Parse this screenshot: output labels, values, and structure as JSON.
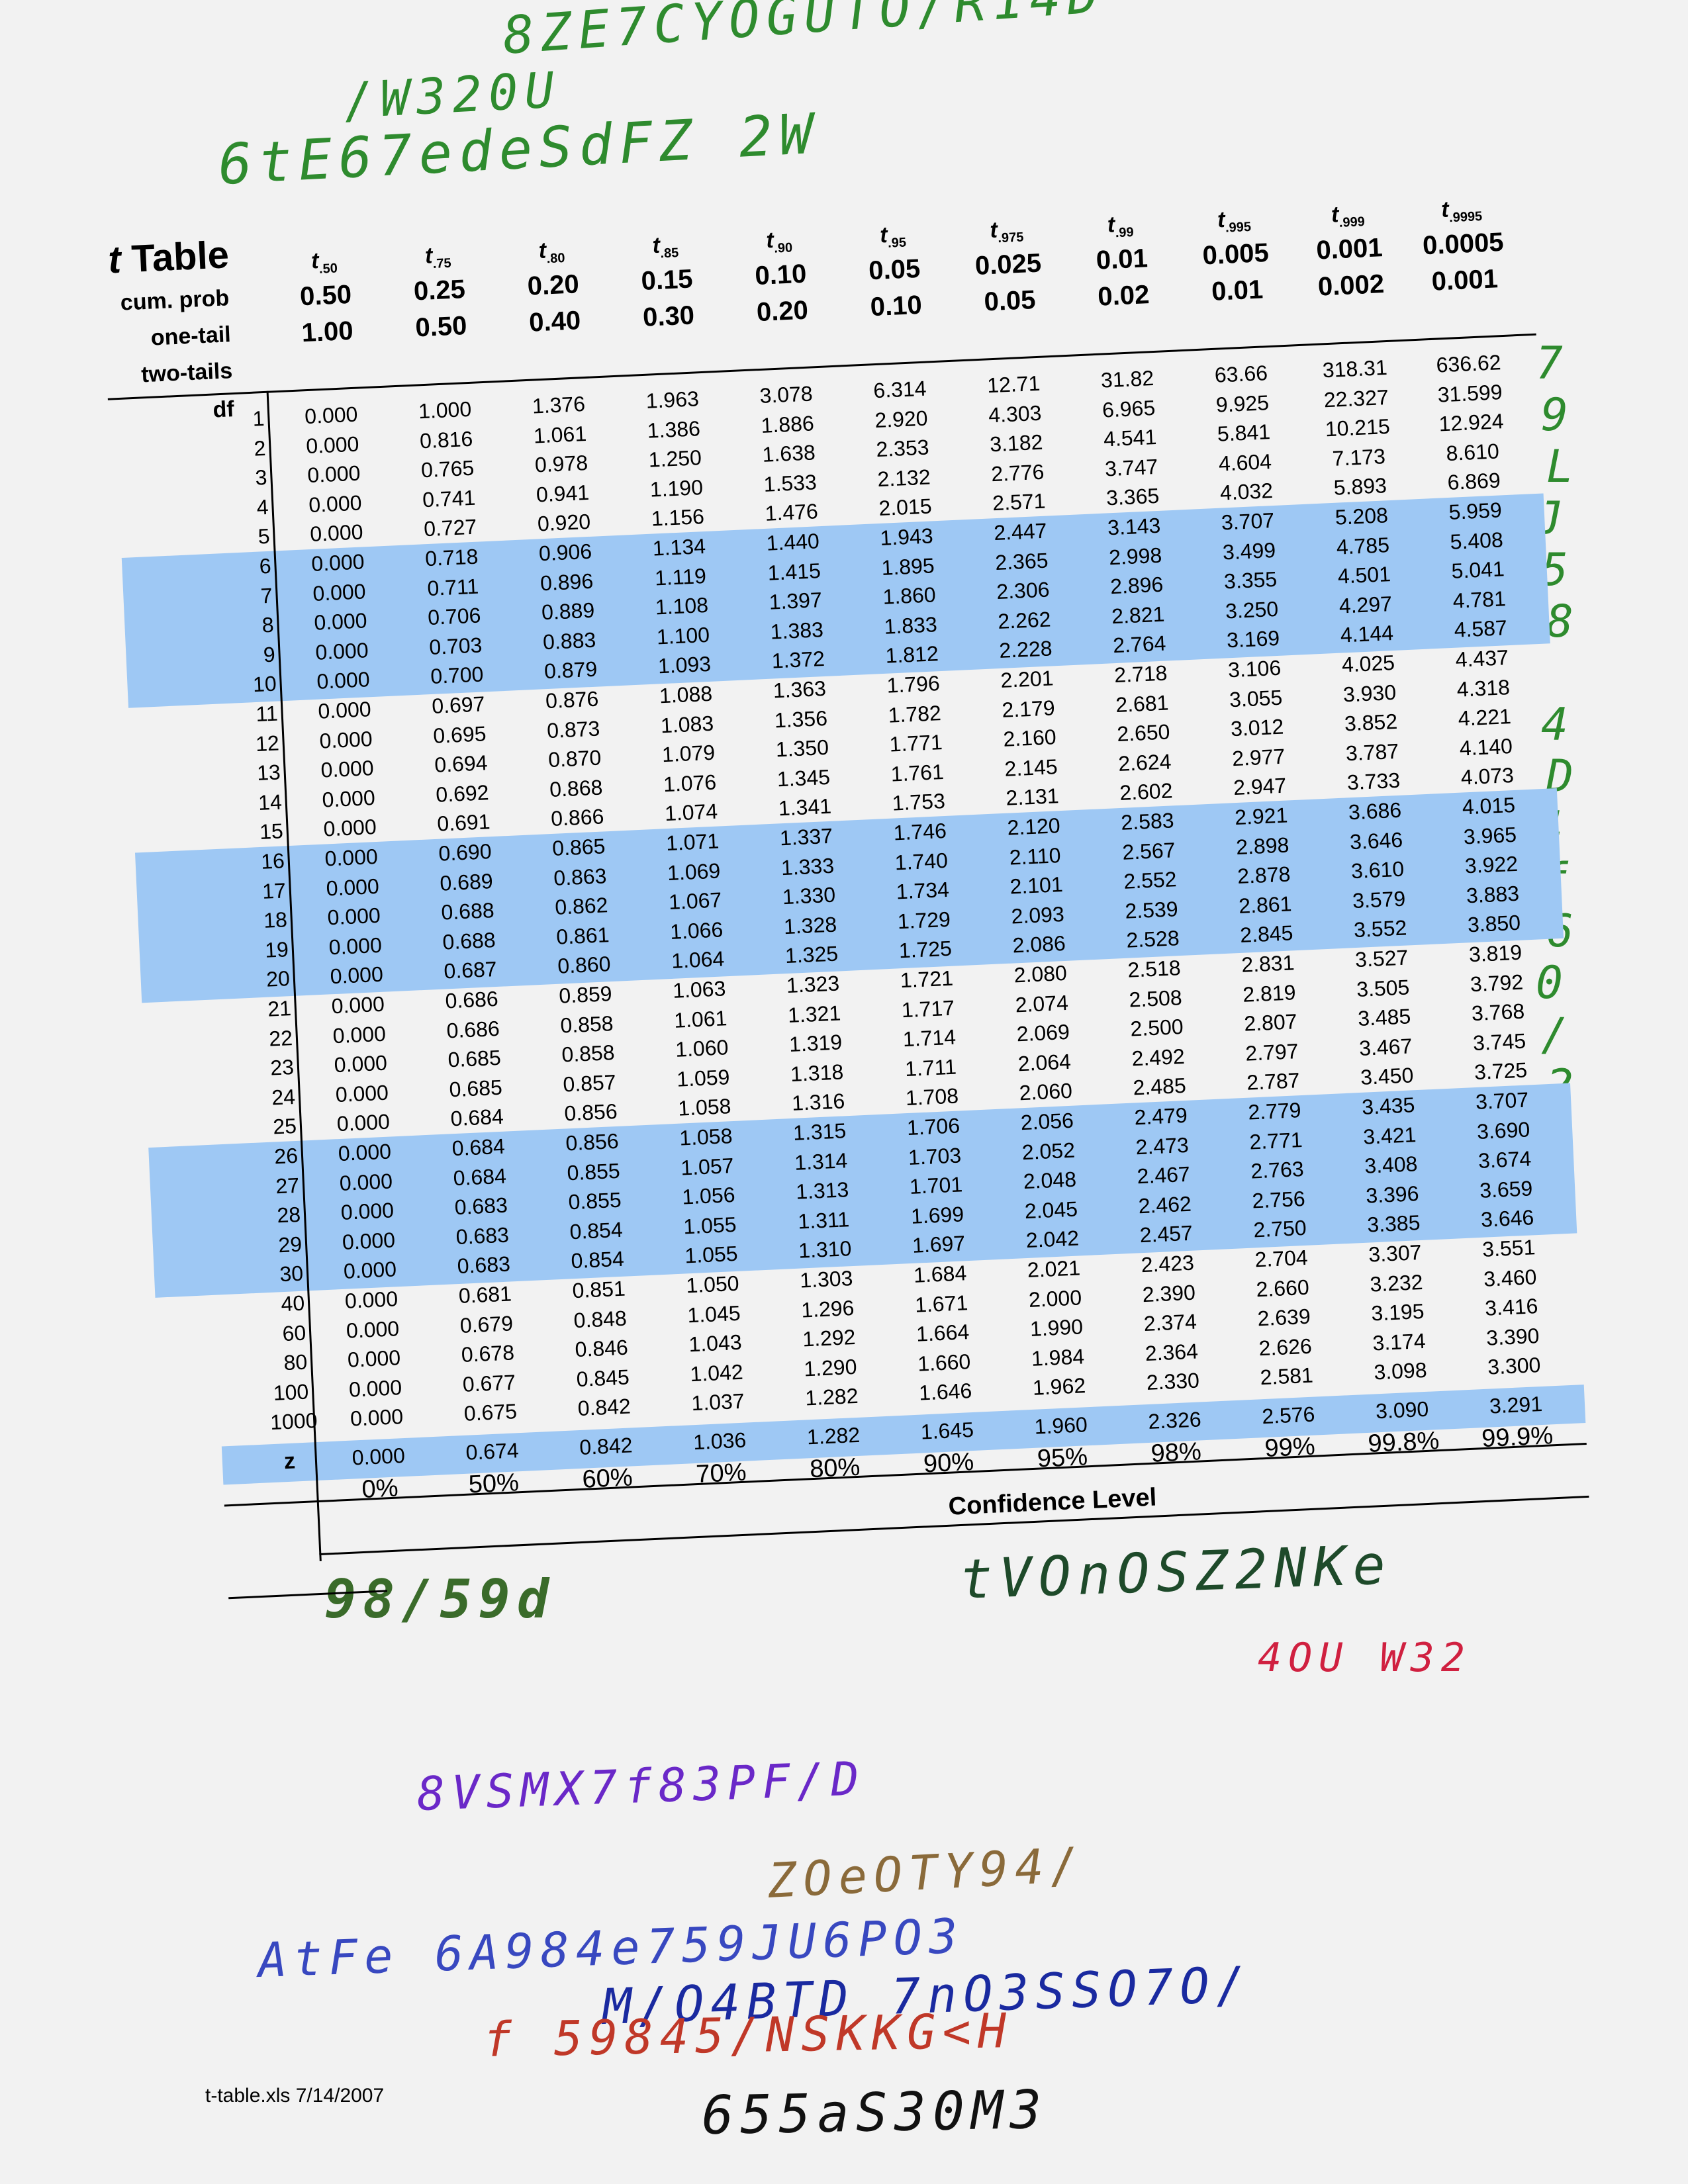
{
  "handwriting": [
    {
      "text": "8ZE7CYOGUTO/R14D",
      "color": "#2e8b2e"
    },
    {
      "text": "/W320U",
      "color": "#2e8b2e"
    },
    {
      "text": "6tE67edeSdFZ 2W",
      "color": "#2e8b2e"
    },
    {
      "text": "7",
      "color": "#2e8b2e"
    },
    {
      "text": "98/59d",
      "color": "#3a6b2a"
    },
    {
      "text": "tVOnOSZ2NKe",
      "color": "#1e4a2a"
    },
    {
      "text": "4OU W32",
      "color": "#d02040"
    },
    {
      "text": "8VSMX7f83PF/D",
      "color": "#6a28c8"
    },
    {
      "text": "ZOeOTY94/",
      "color": "#8a6a3a"
    },
    {
      "text": "AtFe 6A984e759JU6PO3",
      "color": "#3848c0"
    },
    {
      "text": "M/O4BTD 7nO3SSO7O/",
      "color": "#1a2aa0"
    },
    {
      "text": "f 59845/NSKKG<H",
      "color": "#c03828"
    },
    {
      "text": "655aS30M3",
      "color": "#111111"
    }
  ],
  "side_handwriting": [
    "7",
    "9",
    "L",
    "J",
    "5",
    "8",
    "",
    "4",
    "D",
    "4",
    "f",
    "6",
    "0",
    "/",
    "2",
    "5"
  ],
  "table": {
    "title_italic": "t",
    "title_rest": " Table",
    "row_labels": {
      "cum_prob": "cum. prob",
      "one_tail": "one-tail",
      "two_tails": "two-tails",
      "df": "df",
      "z": "z"
    },
    "columns": [
      {
        "t_sub": ".50",
        "cum": "0.50",
        "one": "0.50",
        "two": "1.00"
      },
      {
        "t_sub": ".75",
        "cum": "0.75",
        "one": "0.25",
        "two": "0.50"
      },
      {
        "t_sub": ".80",
        "cum": "0.80",
        "one": "0.20",
        "two": "0.40"
      },
      {
        "t_sub": ".85",
        "cum": "0.85",
        "one": "0.15",
        "two": "0.30"
      },
      {
        "t_sub": ".90",
        "cum": "0.90",
        "one": "0.10",
        "two": "0.20"
      },
      {
        "t_sub": ".95",
        "cum": "0.95",
        "one": "0.05",
        "two": "0.10"
      },
      {
        "t_sub": ".975",
        "cum": "0.975",
        "one": "0.025",
        "two": "0.05"
      },
      {
        "t_sub": ".99",
        "cum": "0.99",
        "one": "0.01",
        "two": "0.02"
      },
      {
        "t_sub": ".995",
        "cum": "0.995",
        "one": "0.005",
        "two": "0.01"
      },
      {
        "t_sub": ".999",
        "cum": "0.999",
        "one": "0.001",
        "two": "0.002"
      },
      {
        "t_sub": ".9995",
        "cum": "0.9995",
        "one": "0.0005",
        "two": "0.001"
      }
    ],
    "rows": [
      {
        "df": "1",
        "v": [
          "0.000",
          "1.000",
          "1.376",
          "1.963",
          "3.078",
          "6.314",
          "12.71",
          "31.82",
          "63.66",
          "318.31",
          "636.62"
        ]
      },
      {
        "df": "2",
        "v": [
          "0.000",
          "0.816",
          "1.061",
          "1.386",
          "1.886",
          "2.920",
          "4.303",
          "6.965",
          "9.925",
          "22.327",
          "31.599"
        ]
      },
      {
        "df": "3",
        "v": [
          "0.000",
          "0.765",
          "0.978",
          "1.250",
          "1.638",
          "2.353",
          "3.182",
          "4.541",
          "5.841",
          "10.215",
          "12.924"
        ]
      },
      {
        "df": "4",
        "v": [
          "0.000",
          "0.741",
          "0.941",
          "1.190",
          "1.533",
          "2.132",
          "2.776",
          "3.747",
          "4.604",
          "7.173",
          "8.610"
        ]
      },
      {
        "df": "5",
        "v": [
          "0.000",
          "0.727",
          "0.920",
          "1.156",
          "1.476",
          "2.015",
          "2.571",
          "3.365",
          "4.032",
          "5.893",
          "6.869"
        ]
      },
      {
        "df": "6",
        "v": [
          "0.000",
          "0.718",
          "0.906",
          "1.134",
          "1.440",
          "1.943",
          "2.447",
          "3.143",
          "3.707",
          "5.208",
          "5.959"
        ]
      },
      {
        "df": "7",
        "v": [
          "0.000",
          "0.711",
          "0.896",
          "1.119",
          "1.415",
          "1.895",
          "2.365",
          "2.998",
          "3.499",
          "4.785",
          "5.408"
        ]
      },
      {
        "df": "8",
        "v": [
          "0.000",
          "0.706",
          "0.889",
          "1.108",
          "1.397",
          "1.860",
          "2.306",
          "2.896",
          "3.355",
          "4.501",
          "5.041"
        ]
      },
      {
        "df": "9",
        "v": [
          "0.000",
          "0.703",
          "0.883",
          "1.100",
          "1.383",
          "1.833",
          "2.262",
          "2.821",
          "3.250",
          "4.297",
          "4.781"
        ]
      },
      {
        "df": "10",
        "v": [
          "0.000",
          "0.700",
          "0.879",
          "1.093",
          "1.372",
          "1.812",
          "2.228",
          "2.764",
          "3.169",
          "4.144",
          "4.587"
        ]
      },
      {
        "df": "11",
        "v": [
          "0.000",
          "0.697",
          "0.876",
          "1.088",
          "1.363",
          "1.796",
          "2.201",
          "2.718",
          "3.106",
          "4.025",
          "4.437"
        ]
      },
      {
        "df": "12",
        "v": [
          "0.000",
          "0.695",
          "0.873",
          "1.083",
          "1.356",
          "1.782",
          "2.179",
          "2.681",
          "3.055",
          "3.930",
          "4.318"
        ]
      },
      {
        "df": "13",
        "v": [
          "0.000",
          "0.694",
          "0.870",
          "1.079",
          "1.350",
          "1.771",
          "2.160",
          "2.650",
          "3.012",
          "3.852",
          "4.221"
        ]
      },
      {
        "df": "14",
        "v": [
          "0.000",
          "0.692",
          "0.868",
          "1.076",
          "1.345",
          "1.761",
          "2.145",
          "2.624",
          "2.977",
          "3.787",
          "4.140"
        ]
      },
      {
        "df": "15",
        "v": [
          "0.000",
          "0.691",
          "0.866",
          "1.074",
          "1.341",
          "1.753",
          "2.131",
          "2.602",
          "2.947",
          "3.733",
          "4.073"
        ]
      },
      {
        "df": "16",
        "v": [
          "0.000",
          "0.690",
          "0.865",
          "1.071",
          "1.337",
          "1.746",
          "2.120",
          "2.583",
          "2.921",
          "3.686",
          "4.015"
        ]
      },
      {
        "df": "17",
        "v": [
          "0.000",
          "0.689",
          "0.863",
          "1.069",
          "1.333",
          "1.740",
          "2.110",
          "2.567",
          "2.898",
          "3.646",
          "3.965"
        ]
      },
      {
        "df": "18",
        "v": [
          "0.000",
          "0.688",
          "0.862",
          "1.067",
          "1.330",
          "1.734",
          "2.101",
          "2.552",
          "2.878",
          "3.610",
          "3.922"
        ]
      },
      {
        "df": "19",
        "v": [
          "0.000",
          "0.688",
          "0.861",
          "1.066",
          "1.328",
          "1.729",
          "2.093",
          "2.539",
          "2.861",
          "3.579",
          "3.883"
        ]
      },
      {
        "df": "20",
        "v": [
          "0.000",
          "0.687",
          "0.860",
          "1.064",
          "1.325",
          "1.725",
          "2.086",
          "2.528",
          "2.845",
          "3.552",
          "3.850"
        ]
      },
      {
        "df": "21",
        "v": [
          "0.000",
          "0.686",
          "0.859",
          "1.063",
          "1.323",
          "1.721",
          "2.080",
          "2.518",
          "2.831",
          "3.527",
          "3.819"
        ]
      },
      {
        "df": "22",
        "v": [
          "0.000",
          "0.686",
          "0.858",
          "1.061",
          "1.321",
          "1.717",
          "2.074",
          "2.508",
          "2.819",
          "3.505",
          "3.792"
        ]
      },
      {
        "df": "23",
        "v": [
          "0.000",
          "0.685",
          "0.858",
          "1.060",
          "1.319",
          "1.714",
          "2.069",
          "2.500",
          "2.807",
          "3.485",
          "3.768"
        ]
      },
      {
        "df": "24",
        "v": [
          "0.000",
          "0.685",
          "0.857",
          "1.059",
          "1.318",
          "1.711",
          "2.064",
          "2.492",
          "2.797",
          "3.467",
          "3.745"
        ]
      },
      {
        "df": "25",
        "v": [
          "0.000",
          "0.684",
          "0.856",
          "1.058",
          "1.316",
          "1.708",
          "2.060",
          "2.485",
          "2.787",
          "3.450",
          "3.725"
        ]
      },
      {
        "df": "26",
        "v": [
          "0.000",
          "0.684",
          "0.856",
          "1.058",
          "1.315",
          "1.706",
          "2.056",
          "2.479",
          "2.779",
          "3.435",
          "3.707"
        ]
      },
      {
        "df": "27",
        "v": [
          "0.000",
          "0.684",
          "0.855",
          "1.057",
          "1.314",
          "1.703",
          "2.052",
          "2.473",
          "2.771",
          "3.421",
          "3.690"
        ]
      },
      {
        "df": "28",
        "v": [
          "0.000",
          "0.683",
          "0.855",
          "1.056",
          "1.313",
          "1.701",
          "2.048",
          "2.467",
          "2.763",
          "3.408",
          "3.674"
        ]
      },
      {
        "df": "29",
        "v": [
          "0.000",
          "0.683",
          "0.854",
          "1.055",
          "1.311",
          "1.699",
          "2.045",
          "2.462",
          "2.756",
          "3.396",
          "3.659"
        ]
      },
      {
        "df": "30",
        "v": [
          "0.000",
          "0.683",
          "0.854",
          "1.055",
          "1.310",
          "1.697",
          "2.042",
          "2.457",
          "2.750",
          "3.385",
          "3.646"
        ]
      },
      {
        "df": "40",
        "v": [
          "0.000",
          "0.681",
          "0.851",
          "1.050",
          "1.303",
          "1.684",
          "2.021",
          "2.423",
          "2.704",
          "3.307",
          "3.551"
        ]
      },
      {
        "df": "60",
        "v": [
          "0.000",
          "0.679",
          "0.848",
          "1.045",
          "1.296",
          "1.671",
          "2.000",
          "2.390",
          "2.660",
          "3.232",
          "3.460"
        ]
      },
      {
        "df": "80",
        "v": [
          "0.000",
          "0.678",
          "0.846",
          "1.043",
          "1.292",
          "1.664",
          "1.990",
          "2.374",
          "2.639",
          "3.195",
          "3.416"
        ]
      },
      {
        "df": "100",
        "v": [
          "0.000",
          "0.677",
          "0.845",
          "1.042",
          "1.290",
          "1.660",
          "1.984",
          "2.364",
          "2.626",
          "3.174",
          "3.390"
        ]
      },
      {
        "df": "1000",
        "v": [
          "0.000",
          "0.675",
          "0.842",
          "1.037",
          "1.282",
          "1.646",
          "1.962",
          "2.330",
          "2.581",
          "3.098",
          "3.300"
        ]
      }
    ],
    "z_row": [
      "0.000",
      "0.674",
      "0.842",
      "1.036",
      "1.282",
      "1.645",
      "1.960",
      "2.326",
      "2.576",
      "3.090",
      "3.291"
    ],
    "confidence": [
      "0%",
      "50%",
      "60%",
      "70%",
      "80%",
      "90%",
      "95%",
      "98%",
      "99%",
      "99.8%",
      "99.9%"
    ],
    "confidence_label": "Confidence Level"
  },
  "footer": "t-table.xls  7/14/2007",
  "colors": {
    "band": "#9ec8f4",
    "paper": "#f2f2f2"
  }
}
